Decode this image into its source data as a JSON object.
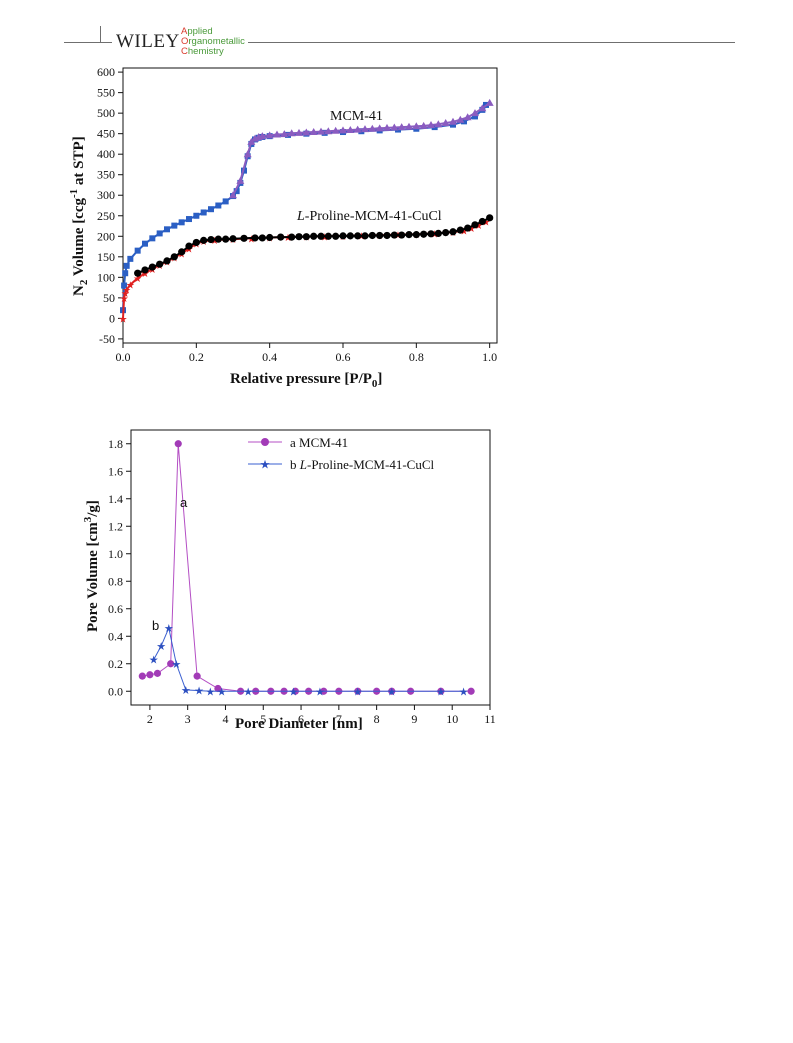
{
  "header": {
    "publisher": "WILEY",
    "journal_line1_cap": "A",
    "journal_line1_rest": "pplied",
    "journal_line2_cap": "O",
    "journal_line2_rest": "rganometallic",
    "journal_line3_cap": "C",
    "journal_line3_rest": "hemistry"
  },
  "chart_data": [
    {
      "type": "line",
      "xlabel": "Relative pressure [P/P0]",
      "ylabel": "N2 Volume [ccg-1 at STP]",
      "xlim": [
        0.0,
        1.02
      ],
      "ylim": [
        -60,
        610
      ],
      "xticks": [
        "0.0",
        "0.2",
        "0.4",
        "0.6",
        "0.8",
        "1.0"
      ],
      "yticks": [
        "-50",
        "0",
        "50",
        "100",
        "150",
        "200",
        "250",
        "300",
        "350",
        "400",
        "450",
        "500",
        "550",
        "600"
      ],
      "annotations": [
        "MCM-41",
        "L-Proline-MCM-41-CuCl"
      ],
      "colors": {
        "mcm_ads": "#2b5fc4",
        "mcm_des": "#8a5cc0",
        "pro_ads": "#e02020",
        "pro_des": "#000000"
      },
      "series": [
        {
          "x": [
            0.0,
            0.003,
            0.006,
            0.01,
            0.02,
            0.04,
            0.06,
            0.08,
            0.1,
            0.12,
            0.14,
            0.16,
            0.18,
            0.2,
            0.22,
            0.24,
            0.26,
            0.28,
            0.3,
            0.31,
            0.32,
            0.33,
            0.34,
            0.35,
            0.36,
            0.37,
            0.38,
            0.4,
            0.45,
            0.5,
            0.55,
            0.6,
            0.65,
            0.7,
            0.75,
            0.8,
            0.85,
            0.9,
            0.93,
            0.96,
            0.98,
            0.99
          ],
          "y": [
            20,
            80,
            110,
            128,
            145,
            165,
            182,
            195,
            207,
            217,
            226,
            234,
            242,
            250,
            258,
            266,
            275,
            285,
            298,
            310,
            330,
            360,
            395,
            425,
            436,
            440,
            442,
            444,
            447,
            450,
            452,
            454,
            456,
            458,
            460,
            462,
            466,
            472,
            480,
            492,
            508,
            520
          ]
        },
        {
          "x": [
            0.3,
            0.32,
            0.34,
            0.35,
            0.36,
            0.37,
            0.38,
            0.4,
            0.42,
            0.44,
            0.46,
            0.48,
            0.5,
            0.52,
            0.54,
            0.56,
            0.58,
            0.6,
            0.62,
            0.64,
            0.66,
            0.68,
            0.7,
            0.72,
            0.74,
            0.76,
            0.78,
            0.8,
            0.82,
            0.84,
            0.86,
            0.88,
            0.9,
            0.92,
            0.94,
            0.96,
            0.98,
            1.0
          ],
          "y": [
            300,
            335,
            400,
            430,
            438,
            442,
            444,
            446,
            448,
            449,
            451,
            452,
            453,
            454,
            455,
            456,
            457,
            458,
            459,
            460,
            461,
            462,
            463,
            464,
            465,
            466,
            467,
            468,
            469,
            471,
            473,
            476,
            479,
            484,
            490,
            500,
            512,
            525
          ]
        },
        {
          "x": [
            0.0,
            0.003,
            0.006,
            0.01,
            0.02,
            0.04,
            0.06,
            0.08,
            0.1,
            0.12,
            0.14,
            0.16,
            0.18,
            0.2,
            0.22,
            0.25,
            0.3,
            0.35,
            0.4,
            0.45,
            0.5,
            0.55,
            0.6,
            0.65,
            0.7,
            0.75,
            0.8,
            0.85,
            0.9,
            0.93,
            0.95,
            0.97,
            0.99
          ],
          "y": [
            0,
            50,
            62,
            70,
            82,
            98,
            110,
            120,
            130,
            138,
            148,
            158,
            170,
            182,
            188,
            191,
            193,
            195,
            197,
            198,
            199,
            200,
            201,
            202,
            203,
            204,
            205,
            207,
            210,
            214,
            220,
            228,
            236
          ]
        },
        {
          "x": [
            0.04,
            0.06,
            0.08,
            0.1,
            0.12,
            0.14,
            0.16,
            0.18,
            0.2,
            0.22,
            0.24,
            0.26,
            0.28,
            0.3,
            0.33,
            0.36,
            0.38,
            0.4,
            0.43,
            0.46,
            0.48,
            0.5,
            0.52,
            0.54,
            0.56,
            0.58,
            0.6,
            0.62,
            0.64,
            0.66,
            0.68,
            0.7,
            0.72,
            0.74,
            0.76,
            0.78,
            0.8,
            0.82,
            0.84,
            0.86,
            0.88,
            0.9,
            0.92,
            0.94,
            0.96,
            0.98,
            1.0
          ],
          "y": [
            110,
            118,
            125,
            132,
            140,
            150,
            162,
            176,
            185,
            190,
            192,
            193,
            193,
            194,
            195,
            196,
            196,
            197,
            198,
            198,
            199,
            199,
            200,
            200,
            200,
            200,
            201,
            201,
            201,
            201,
            202,
            202,
            202,
            203,
            203,
            204,
            204,
            205,
            206,
            207,
            209,
            211,
            215,
            220,
            228,
            236,
            245
          ]
        }
      ]
    },
    {
      "type": "line",
      "xlabel": "Pore Diameter [nm]",
      "ylabel": "Pore Volume [cm3/g]",
      "xlim": [
        1.5,
        11.0
      ],
      "ylim": [
        -0.1,
        1.9
      ],
      "xticks": [
        "2",
        "3",
        "4",
        "5",
        "6",
        "7",
        "8",
        "9",
        "10",
        "11"
      ],
      "yticks": [
        "0.0",
        "0.2",
        "0.4",
        "0.6",
        "0.8",
        "1.0",
        "1.2",
        "1.4",
        "1.6",
        "1.8"
      ],
      "legend_position": "top-right",
      "legend_prefix": [
        "a",
        "b"
      ],
      "annotations": [
        "a",
        "b"
      ],
      "colors": {
        "a": "#b44fc4",
        "b": "#3a5fd0"
      },
      "series": [
        {
          "name": "MCM-41",
          "x": [
            1.8,
            2.0,
            2.2,
            2.55,
            2.75,
            3.25,
            3.8,
            4.4,
            4.8,
            5.2,
            5.55,
            5.85,
            6.2,
            6.6,
            7.0,
            7.5,
            8.0,
            8.4,
            8.9,
            9.7,
            10.5
          ],
          "y": [
            0.11,
            0.12,
            0.13,
            0.2,
            1.8,
            0.11,
            0.02,
            0.0,
            0.0,
            0.0,
            0.0,
            0.0,
            0.0,
            0.0,
            0.0,
            0.0,
            0.0,
            0.0,
            0.0,
            0.0,
            0.0
          ]
        },
        {
          "name": "L-Proline-MCM-41-CuCl",
          "x": [
            2.1,
            2.3,
            2.5,
            2.7,
            2.95,
            3.3,
            3.6,
            3.9,
            4.6,
            5.8,
            6.5,
            7.5,
            8.4,
            9.7,
            10.3
          ],
          "y": [
            0.23,
            0.33,
            0.46,
            0.2,
            0.01,
            0.005,
            0.0,
            0.0,
            0.0,
            0.0,
            0.0,
            0.0,
            0.0,
            0.0,
            0.0
          ]
        }
      ]
    }
  ]
}
